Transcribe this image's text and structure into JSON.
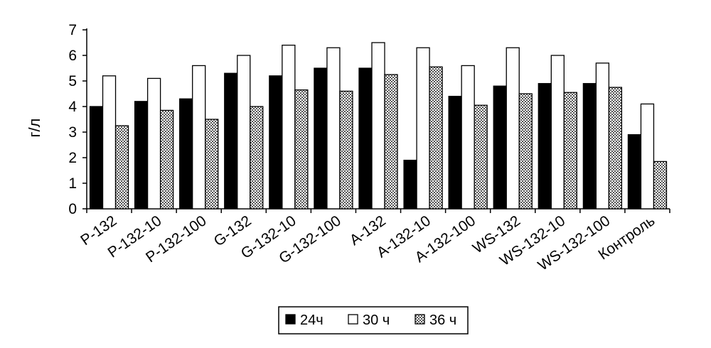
{
  "chart_data": {
    "type": "bar",
    "title": "",
    "xlabel": "",
    "ylabel": "г/л",
    "ylim": [
      0,
      7
    ],
    "yticks": [
      0,
      1,
      2,
      3,
      4,
      5,
      6,
      7
    ],
    "grid": false,
    "legend_position": "bottom",
    "categories": [
      "P-132",
      "P-132-10",
      "P-132-100",
      "G-132",
      "G-132-10",
      "G-132-100",
      "A-132",
      "A-132-10",
      "A-132-100",
      "WS-132",
      "WS-132-10",
      "WS-132-100",
      "Контроль"
    ],
    "series": [
      {
        "name": "24ч",
        "fill": "solid-black",
        "values": [
          4.0,
          4.2,
          4.3,
          5.3,
          5.2,
          5.5,
          5.5,
          1.9,
          4.4,
          4.8,
          4.9,
          4.9,
          2.9
        ]
      },
      {
        "name": "30 ч",
        "fill": "white",
        "values": [
          5.2,
          5.1,
          5.6,
          6.0,
          6.4,
          6.3,
          6.5,
          6.3,
          5.6,
          6.3,
          6.0,
          5.7,
          4.1
        ]
      },
      {
        "name": "36 ч",
        "fill": "checkered",
        "values": [
          3.25,
          3.85,
          3.5,
          4.0,
          4.65,
          4.6,
          5.25,
          5.55,
          4.05,
          4.5,
          4.55,
          4.75,
          1.85
        ]
      }
    ],
    "colors": {
      "bar_stroke": "#000000",
      "solid": "#000000",
      "white": "#ffffff",
      "check_dark": "#555555"
    }
  }
}
